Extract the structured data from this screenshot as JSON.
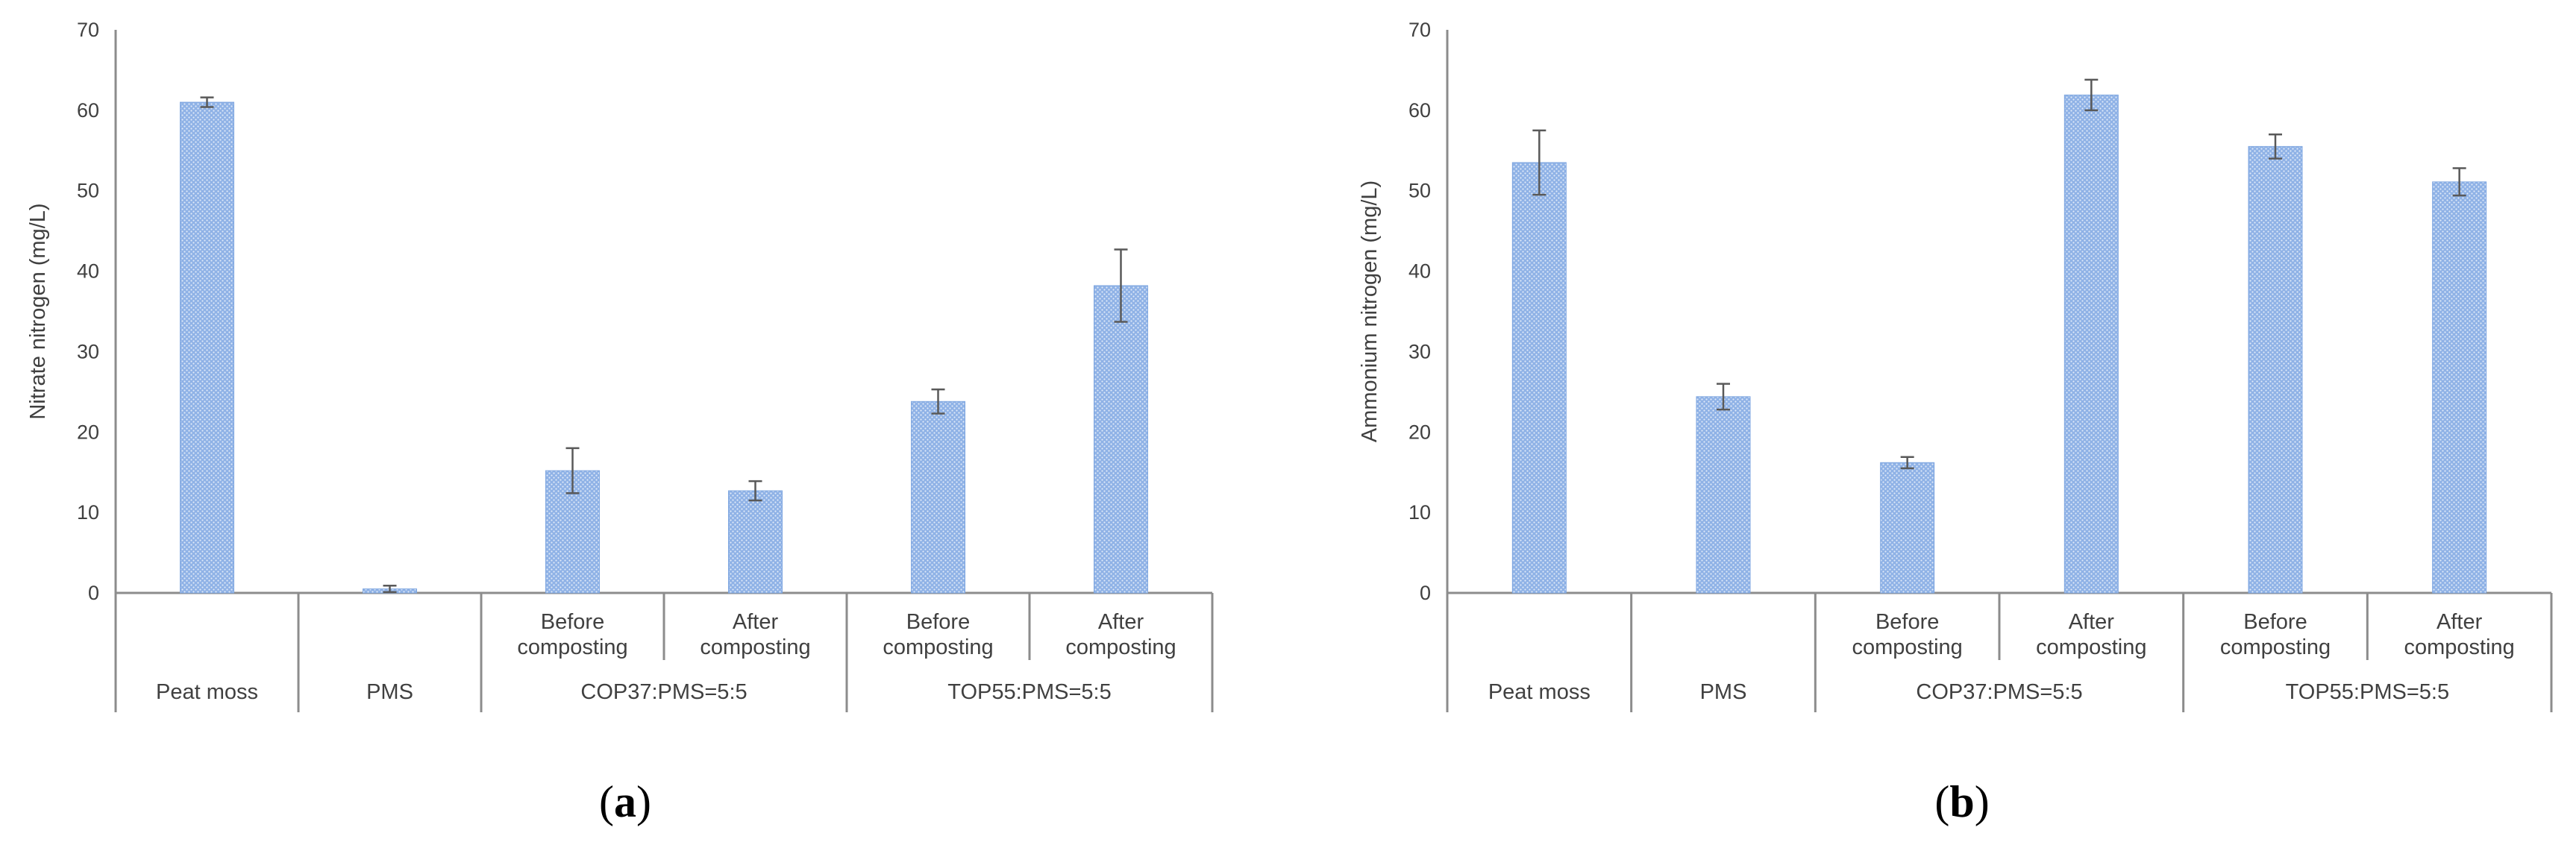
{
  "chart_data": [
    {
      "type": "bar",
      "panel_label": "a",
      "ylabel": "Nitrate nitrogen (mg/L)",
      "ylim": [
        0,
        70
      ],
      "yticks": [
        0,
        10,
        20,
        30,
        40,
        50,
        60,
        70
      ],
      "bar_color": "#7ea6e0",
      "categories": [
        {
          "label": "Peat moss",
          "value": 61,
          "error": 0.6
        },
        {
          "label": "PMS",
          "value": 0.5,
          "error": 0.4
        },
        {
          "label": "Before composting",
          "group": "COP37:PMS=5:5",
          "value": 15.2,
          "error": 2.8
        },
        {
          "label": "After composting",
          "group": "COP37:PMS=5:5",
          "value": 12.7,
          "error": 1.2
        },
        {
          "label": "Before composting",
          "group": "TOP55:PMS=5:5",
          "value": 23.8,
          "error": 1.5
        },
        {
          "label": "After composting",
          "group": "TOP55:PMS=5:5",
          "value": 38.2,
          "error": 4.5
        }
      ]
    },
    {
      "type": "bar",
      "panel_label": "b",
      "ylabel": "Ammonium nitrogen (mg/L)",
      "ylim": [
        0,
        70
      ],
      "yticks": [
        0,
        10,
        20,
        30,
        40,
        50,
        60,
        70
      ],
      "bar_color": "#7ea6e0",
      "categories": [
        {
          "label": "Peat moss",
          "value": 53.5,
          "error": 4.0
        },
        {
          "label": "PMS",
          "value": 24.4,
          "error": 1.6
        },
        {
          "label": "Before composting",
          "group": "COP37:PMS=5:5",
          "value": 16.2,
          "error": 0.7
        },
        {
          "label": "After composting",
          "group": "COP37:PMS=5:5",
          "value": 61.9,
          "error": 1.9
        },
        {
          "label": "Before composting",
          "group": "TOP55:PMS=5:5",
          "value": 55.5,
          "error": 1.5
        },
        {
          "label": "After composting",
          "group": "TOP55:PMS=5:5",
          "value": 51.1,
          "error": 1.7
        }
      ]
    }
  ]
}
